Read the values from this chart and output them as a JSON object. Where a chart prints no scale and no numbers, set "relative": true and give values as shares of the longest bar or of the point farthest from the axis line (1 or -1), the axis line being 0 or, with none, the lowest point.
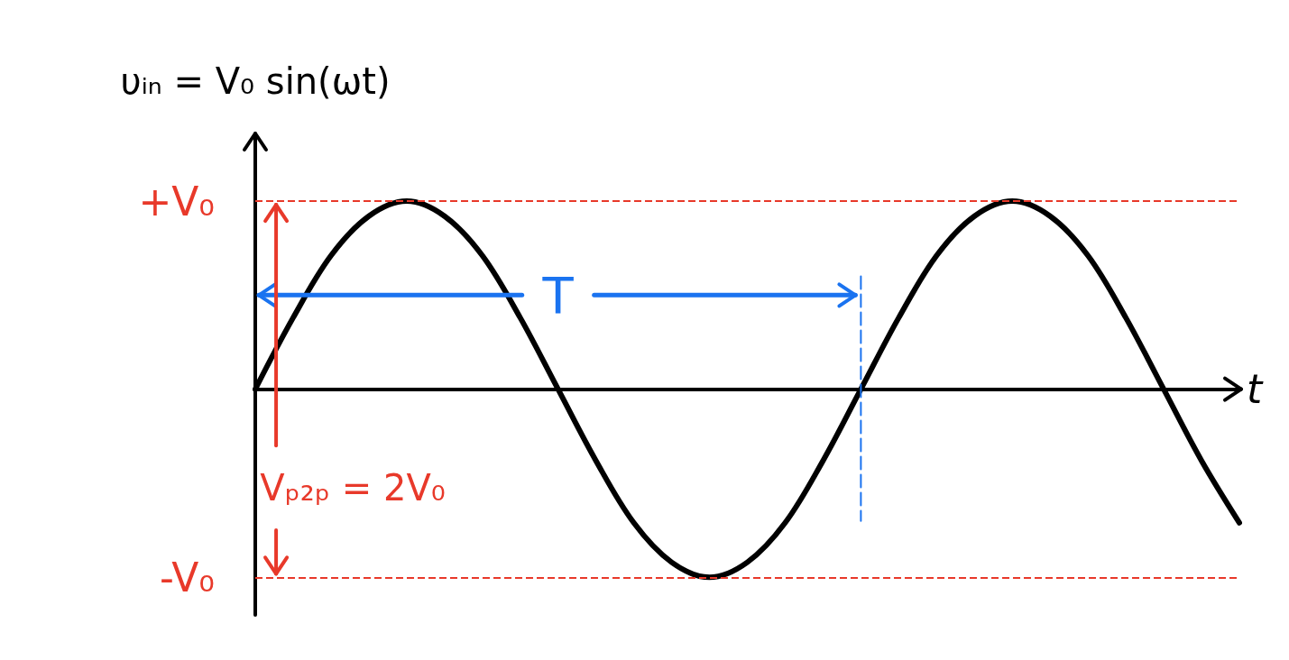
{
  "chart_data": {
    "type": "line",
    "relative": true,
    "ylabel": "υᵢₙ = V₀ sin(ωt)",
    "xlabel": "t",
    "categories": [
      null,
      null,
      null,
      null,
      null,
      null,
      null,
      null,
      null,
      null,
      null,
      null,
      null,
      null,
      null,
      null,
      null,
      null,
      null,
      null,
      null,
      null,
      null,
      null,
      null,
      null,
      null
    ],
    "series": [
      {
        "color": "#000000",
        "values": [
          0,
          0.38,
          0.71,
          0.92,
          1,
          0.92,
          0.71,
          0.38,
          0,
          -0.38,
          -0.71,
          -0.92,
          -1,
          -0.92,
          -0.71,
          -0.38,
          0,
          0.38,
          0.71,
          0.92,
          1,
          0.92,
          0.71,
          0.38,
          0,
          -0.38,
          -0.71
        ]
      }
    ],
    "ref_lines": [
      {
        "axis": "y",
        "value": 1,
        "label": "+V₀",
        "color": "#e8392a",
        "line_style": "dashed"
      },
      {
        "axis": "y",
        "value": -1,
        "label": "-V₀",
        "color": "#e8392a",
        "line_style": "dashed"
      }
    ],
    "annotations": [
      "T",
      "Vₚ₂ₚ = 2V₀"
    ],
    "marker": "none",
    "line_style": "solid",
    "grid": false
  }
}
